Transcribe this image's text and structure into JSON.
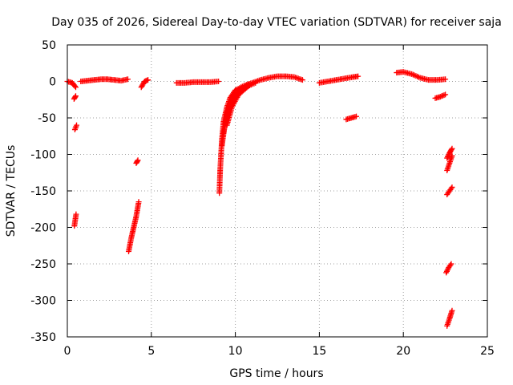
{
  "chart_data": {
    "type": "scatter",
    "title": "Day 035 of 2026, Sidereal Day-to-day VTEC variation (SDTVAR) for receiver saja",
    "xlabel": "GPS time / hours",
    "ylabel": "SDTVAR / TECUs",
    "xlim": [
      0,
      25
    ],
    "ylim": [
      -350,
      50
    ],
    "xticks": [
      0,
      5,
      10,
      15,
      20,
      25
    ],
    "yticks": [
      50,
      0,
      -50,
      -100,
      -150,
      -200,
      -250,
      -300,
      -350
    ],
    "grid": true,
    "marker": "+",
    "color": "#ff0000",
    "segments": [
      {
        "x": [
          0.0,
          0.3,
          0.5
        ],
        "y": [
          0,
          -2,
          -8
        ]
      },
      {
        "x": [
          0.4,
          0.5
        ],
        "y": [
          -24,
          -20
        ]
      },
      {
        "x": [
          0.45,
          0.55
        ],
        "y": [
          -66,
          -60
        ]
      },
      {
        "x": [
          0.42,
          0.52
        ],
        "y": [
          -198,
          -182
        ]
      },
      {
        "x": [
          0.8,
          1.2,
          1.6,
          2.0,
          2.4,
          2.8,
          3.2,
          3.6
        ],
        "y": [
          0,
          1,
          2,
          3,
          3,
          2,
          1,
          3
        ]
      },
      {
        "x": [
          3.65,
          3.8,
          3.95,
          4.1,
          4.25
        ],
        "y": [
          -233,
          -215,
          -200,
          -185,
          -165
        ]
      },
      {
        "x": [
          4.1,
          4.2
        ],
        "y": [
          -112,
          -108
        ]
      },
      {
        "x": [
          4.4,
          4.6,
          4.8
        ],
        "y": [
          -8,
          0,
          2
        ]
      },
      {
        "x": [
          6.5,
          7.0,
          7.5,
          8.0,
          8.5,
          9.0
        ],
        "y": [
          -2,
          -2,
          -1,
          -1,
          -1,
          0
        ]
      },
      {
        "x": [
          9.05,
          9.1,
          9.2,
          9.3,
          9.5,
          9.7,
          10.0,
          10.5,
          11.0,
          11.5,
          12.0,
          12.5,
          13.0,
          13.5,
          14.0
        ],
        "y": [
          -153,
          -120,
          -80,
          -55,
          -35,
          -22,
          -12,
          -6,
          -2,
          2,
          5,
          7,
          7,
          6,
          2
        ]
      },
      {
        "x": [
          9.2,
          9.4,
          9.7,
          10.1,
          10.6,
          11.2
        ],
        "y": [
          -88,
          -55,
          -32,
          -18,
          -8,
          -2
        ]
      },
      {
        "x": [
          9.3,
          9.5,
          9.8,
          10.2,
          10.8
        ],
        "y": [
          -70,
          -42,
          -24,
          -12,
          -4
        ]
      },
      {
        "x": [
          9.5,
          9.8,
          10.2,
          10.8
        ],
        "y": [
          -60,
          -35,
          -18,
          -6
        ]
      },
      {
        "x": [
          15.0,
          15.5,
          16.0,
          16.5,
          17.0,
          17.3
        ],
        "y": [
          -2,
          0,
          2,
          4,
          6,
          7
        ]
      },
      {
        "x": [
          16.6,
          16.9,
          17.2
        ],
        "y": [
          -52,
          -50,
          -48
        ]
      },
      {
        "x": [
          19.6,
          20.0,
          20.5,
          21.0,
          21.5,
          22.0,
          22.5
        ],
        "y": [
          12,
          13,
          10,
          5,
          2,
          2,
          3
        ]
      },
      {
        "x": [
          21.9,
          22.2,
          22.5
        ],
        "y": [
          -23,
          -21,
          -18
        ]
      },
      {
        "x": [
          22.6,
          22.75,
          22.9
        ],
        "y": [
          -105,
          -98,
          -92
        ]
      },
      {
        "x": [
          22.6,
          22.75,
          22.9
        ],
        "y": [
          -122,
          -112,
          -102
        ]
      },
      {
        "x": [
          22.6,
          22.75,
          22.9
        ],
        "y": [
          -155,
          -150,
          -145
        ]
      },
      {
        "x": [
          22.55,
          22.7,
          22.85
        ],
        "y": [
          -262,
          -255,
          -250
        ]
      },
      {
        "x": [
          22.6,
          22.75,
          22.9
        ],
        "y": [
          -335,
          -325,
          -314
        ]
      }
    ]
  }
}
